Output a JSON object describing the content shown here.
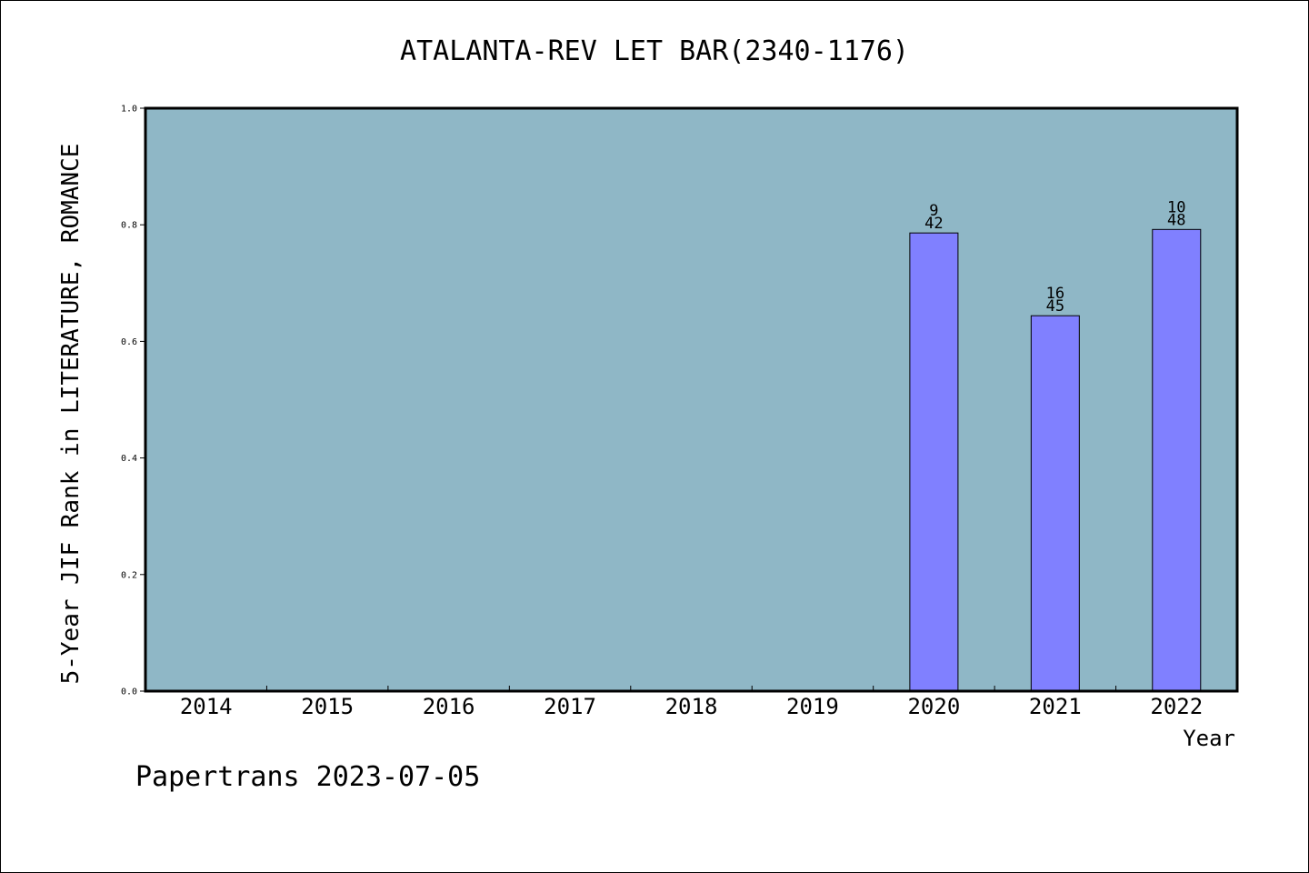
{
  "chart_data": {
    "type": "bar",
    "title": "ATALANTA-REV LET BAR(2340-1176)",
    "xlabel": "Year",
    "ylabel": "5-Year JIF Rank in LITERATURE, ROMANCE",
    "ylim": [
      0,
      1.0
    ],
    "yticks": [
      "0.0",
      "0.2",
      "0.4",
      "0.6",
      "0.8",
      "1.0"
    ],
    "categories": [
      "2014",
      "2015",
      "2016",
      "2017",
      "2018",
      "2019",
      "2020",
      "2021",
      "2022"
    ],
    "values": [
      null,
      null,
      null,
      null,
      null,
      null,
      0.786,
      0.644,
      0.792
    ],
    "bar_labels": [
      null,
      null,
      null,
      null,
      null,
      null,
      {
        "rank": "9",
        "total": "42"
      },
      {
        "rank": "16",
        "total": "45"
      },
      {
        "rank": "10",
        "total": "48"
      }
    ],
    "grid": false,
    "colors": {
      "plot_background": "#8fb7c6",
      "bar_fill": "#8080ff",
      "bar_stroke": "#000000"
    }
  },
  "footer": {
    "text": "Papertrans 2023-07-05"
  }
}
